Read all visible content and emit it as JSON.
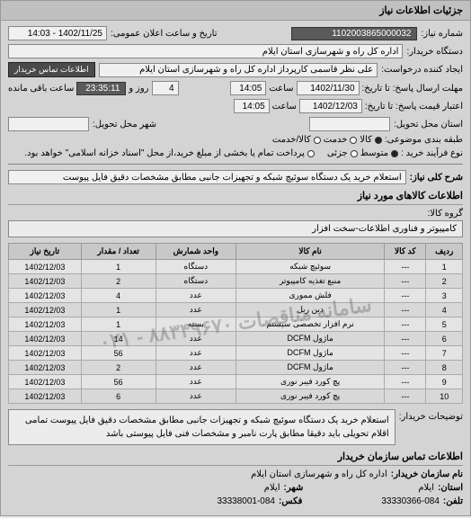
{
  "panel_title": "جزئیات اطلاعات نیاز",
  "need_number_label": "شماره نیاز:",
  "need_number": "1102003865000032",
  "announce_label": "تاریخ و ساعت اعلان عمومی:",
  "announce_value": "1402/11/25 - 14:03",
  "buyer_org_label": "دستگاه خریدار:",
  "buyer_org": "اداره کل راه و شهرسازی استان ایلام",
  "requester_label": "ایجاد کننده درخواست:",
  "requester": "علی نظر قاسمی کارپرداز اداره کل راه و شهرسازی استان ایلام",
  "buyer_contact_btn": "اطلاعات تماس خریدار",
  "deadline_label": "مهلت ارسال پاسخ: تا تاریخ:",
  "deadline_date": "1402/11/30",
  "time_label": "ساعت",
  "deadline_time": "14:05",
  "days_and_label": "روز و",
  "days_remaining": "4",
  "remaining_time": "23:35:11",
  "remaining_label": "ساعت باقی مانده",
  "validity_label": "اعتبار قیمت پاسخ: تا تاریخ:",
  "validity_date": "1402/12/03",
  "validity_time": "14:05",
  "delivery_label": "استان محل تحویل:",
  "delivery_city_label": "شهر محل تحویل:",
  "budget_label": "طبقه بندی موضوعی:",
  "opt_goods": "کالا",
  "opt_service": "خدمت",
  "opt_goods_service": "کالا/خدمت",
  "purchase_type_label": "نوع فرآیند خرید :",
  "opt_mid": "متوسط",
  "opt_partial": "جزئی",
  "purchase_note": "پرداخت تمام یا بخشی از مبلغ خرید،از محل \"اسناد خزانه اسلامی\" خواهد بود.",
  "summary_label": "شرح کلی نیاز:",
  "summary": "استعلام خرید یک دستگاه سوئیچ شبکه و تجهیزات جانبی مطابق مشخصات دقیق فایل پیوست",
  "goods_section": "اطلاعات کالاهای مورد نیاز",
  "category_label": "گروه کالا:",
  "category": "کامپیوتر و فناوری اطلاعات-سخت افزار",
  "table": {
    "headers": [
      "ردیف",
      "کد کالا",
      "نام کالا",
      "واحد شمارش",
      "تعداد / مقدار",
      "تاریخ نیاز"
    ],
    "rows": [
      [
        "1",
        "---",
        "سوئیچ شبکه",
        "دستگاه",
        "1",
        "1402/12/03"
      ],
      [
        "2",
        "---",
        "منبع تغذیه کامپیوتر",
        "دستگاه",
        "2",
        "1402/12/03"
      ],
      [
        "3",
        "---",
        "فلش مموری",
        "عدد",
        "4",
        "1402/12/03"
      ],
      [
        "4",
        "---",
        "دین ریل",
        "عدد",
        "1",
        "1402/12/03"
      ],
      [
        "5",
        "---",
        "نرم افزار تخصصی سیستم",
        "بسته",
        "1",
        "1402/12/03"
      ],
      [
        "6",
        "---",
        "ماژول DCFM",
        "عدد",
        "14",
        "1402/12/03"
      ],
      [
        "7",
        "---",
        "ماژول DCFM",
        "عدد",
        "56",
        "1402/12/03"
      ],
      [
        "8",
        "---",
        "ماژول DCFM",
        "عدد",
        "2",
        "1402/12/03"
      ],
      [
        "9",
        "---",
        "پچ کورد فیبر نوری",
        "عدد",
        "56",
        "1402/12/03"
      ],
      [
        "10",
        "---",
        "پچ کورد فیبر نوری",
        "عدد",
        "6",
        "1402/12/03"
      ]
    ]
  },
  "watermark": "سامانه مناقصات ۸۸۳۴۹۶۷۰ - ۰۲۱",
  "desc_label": "توضیحات خریدار:",
  "desc": "استعلام خرید یک دستگاه سوئیچ شبکه و تجهیزات جانبی مطابق مشخصات دقیق فایل پیوست تمامی اقلام تحویلی باید دقیقا مطابق پارت نامبر و مشخصات فنی فایل پیوستی باشد",
  "contact_section": "اطلاعات تماس سازمان خریدار",
  "org_name_label": "نام سازمان خریدار:",
  "org_name": "اداره کل راه و شهرسازی استان ایلام",
  "province_label": "استان:",
  "province": "ایلام",
  "city_label": "شهر:",
  "city": "ایلام",
  "phone_label": "تلفن:",
  "phone": "33330366-084",
  "fax_label": "فکس:",
  "fax": "33338001-084"
}
